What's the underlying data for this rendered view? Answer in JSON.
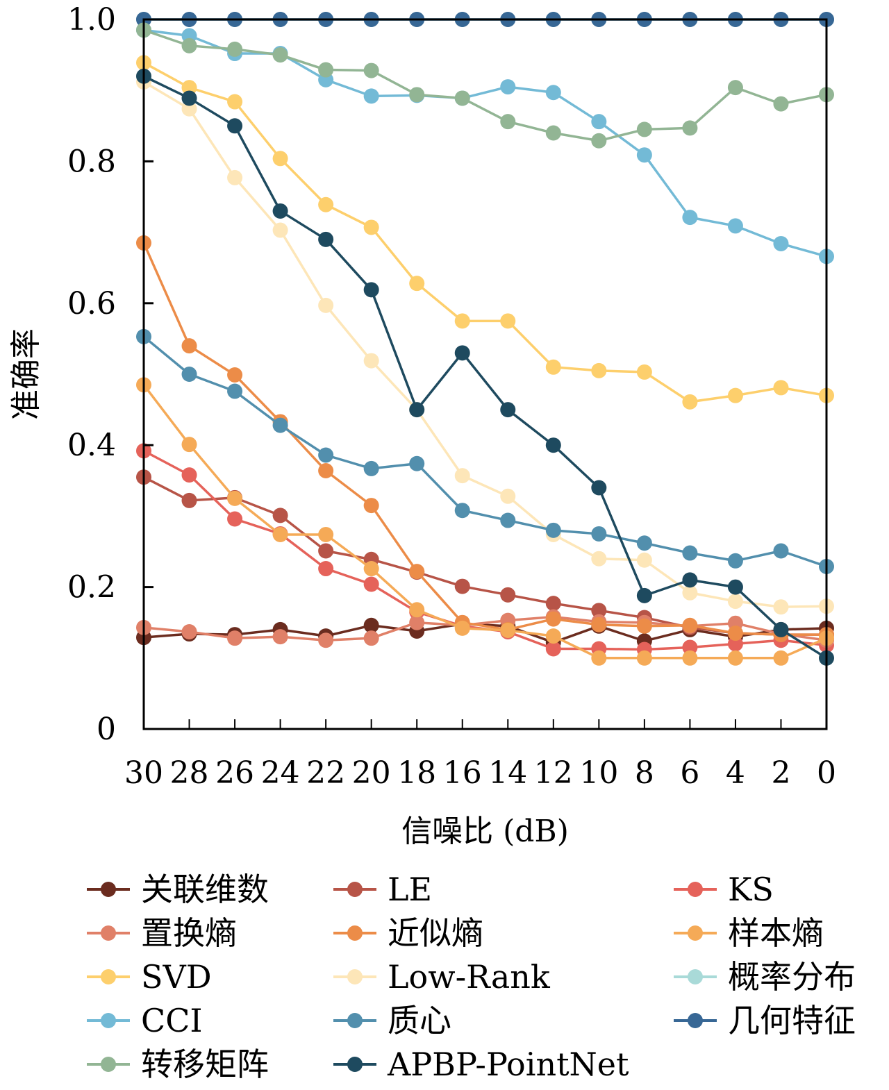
{
  "chart_data": {
    "type": "line",
    "title": "",
    "xlabel": "信噪比 (dB)",
    "ylabel": "准确率",
    "x": [
      30,
      28,
      26,
      24,
      22,
      20,
      18,
      16,
      14,
      12,
      10,
      8,
      6,
      4,
      2,
      0
    ],
    "x_tick_labels": [
      "30",
      "28",
      "26",
      "24",
      "22",
      "20",
      "18",
      "16",
      "14",
      "12",
      "10",
      "8",
      "6",
      "4",
      "2",
      "0"
    ],
    "y_ticks": [
      0,
      0.2,
      0.4,
      0.6,
      0.8,
      1.0
    ],
    "y_tick_labels": [
      "0",
      "0.2",
      "0.4",
      "0.6",
      "0.8",
      "1.0"
    ],
    "ylim": [
      0,
      1.0
    ],
    "xlim": [
      30,
      0
    ],
    "x_reversed": true,
    "grid": false,
    "legend_position": "bottom",
    "series": [
      {
        "name": "关联维数",
        "color": "#6b2c1f",
        "values": [
          0.129,
          0.134,
          0.133,
          0.14,
          0.131,
          0.146,
          0.138,
          0.148,
          0.145,
          0.122,
          0.145,
          0.124,
          0.14,
          0.13,
          0.14,
          0.142
        ]
      },
      {
        "name": "LE",
        "color": "#b75447",
        "values": [
          0.355,
          0.322,
          0.326,
          0.301,
          0.251,
          0.239,
          0.221,
          0.201,
          0.189,
          0.177,
          0.167,
          0.157,
          0.143,
          0.135,
          0.133,
          0.133
        ]
      },
      {
        "name": "KS",
        "color": "#e5625a",
        "values": [
          0.392,
          0.358,
          0.296,
          0.275,
          0.226,
          0.204,
          0.165,
          0.145,
          0.137,
          0.113,
          0.113,
          0.112,
          0.115,
          0.12,
          0.125,
          0.118
        ]
      },
      {
        "name": "置换熵",
        "color": "#e08068",
        "values": [
          0.143,
          0.137,
          0.128,
          0.13,
          0.125,
          0.128,
          0.15,
          0.146,
          0.153,
          0.158,
          0.151,
          0.15,
          0.145,
          0.149,
          0.134,
          0.125
        ]
      },
      {
        "name": "近似熵",
        "color": "#ec8c48",
        "values": [
          0.685,
          0.54,
          0.499,
          0.433,
          0.364,
          0.315,
          0.222,
          0.15,
          0.14,
          0.155,
          0.147,
          0.145,
          0.146,
          0.135,
          0.133,
          0.133
        ]
      },
      {
        "name": "样本熵",
        "color": "#f5aa57",
        "values": [
          0.485,
          0.401,
          0.325,
          0.274,
          0.274,
          0.226,
          0.168,
          0.142,
          0.139,
          0.131,
          0.1,
          0.1,
          0.1,
          0.1,
          0.1,
          0.128
        ]
      },
      {
        "name": "SVD",
        "color": "#fdcf6c",
        "values": [
          0.939,
          0.904,
          0.884,
          0.804,
          0.739,
          0.707,
          0.628,
          0.575,
          0.575,
          0.51,
          0.505,
          0.503,
          0.461,
          0.47,
          0.481,
          0.47
        ]
      },
      {
        "name": "Low-Rank",
        "color": "#fde6b8",
        "values": [
          0.912,
          0.874,
          0.777,
          0.703,
          0.597,
          0.519,
          0.45,
          0.357,
          0.328,
          0.274,
          0.24,
          0.238,
          0.192,
          0.18,
          0.172,
          0.173
        ]
      },
      {
        "name": "概率分布",
        "color": "#a9dad8",
        "values": [
          1.0,
          1.0,
          1.0,
          1.0,
          1.0,
          1.0,
          1.0,
          1.0,
          1.0,
          1.0,
          1.0,
          1.0,
          1.0,
          1.0,
          1.0,
          1.0
        ]
      },
      {
        "name": "CCI",
        "color": "#73bad6",
        "values": [
          0.985,
          0.977,
          0.952,
          0.952,
          0.915,
          0.892,
          0.893,
          0.889,
          0.905,
          0.897,
          0.856,
          0.809,
          0.721,
          0.709,
          0.684,
          0.666
        ]
      },
      {
        "name": "质心",
        "color": "#528fad",
        "values": [
          0.553,
          0.5,
          0.476,
          0.428,
          0.386,
          0.367,
          0.374,
          0.308,
          0.294,
          0.28,
          0.275,
          0.262,
          0.248,
          0.237,
          0.251,
          0.229
        ]
      },
      {
        "name": "几何特征",
        "color": "#376795",
        "values": [
          1.0,
          1.0,
          1.0,
          1.0,
          1.0,
          1.0,
          1.0,
          1.0,
          1.0,
          1.0,
          1.0,
          1.0,
          1.0,
          1.0,
          1.0,
          1.0
        ]
      },
      {
        "name": "转移矩阵",
        "color": "#92b594",
        "values": [
          0.985,
          0.963,
          0.958,
          0.95,
          0.929,
          0.928,
          0.894,
          0.889,
          0.856,
          0.84,
          0.829,
          0.845,
          0.847,
          0.904,
          0.881,
          0.894
        ]
      },
      {
        "name": "APBP-PointNet",
        "color": "#1e4a5f",
        "values": [
          0.92,
          0.889,
          0.85,
          0.73,
          0.69,
          0.619,
          0.45,
          0.53,
          0.45,
          0.4,
          0.34,
          0.188,
          0.21,
          0.2,
          0.14,
          0.1
        ]
      }
    ],
    "legend_order": [
      "关联维数",
      "LE",
      "KS",
      "置换熵",
      "近似熵",
      "样本熵",
      "SVD",
      "Low-Rank",
      "概率分布",
      "CCI",
      "质心",
      "几何特征",
      "转移矩阵",
      "APBP-PointNet"
    ]
  }
}
